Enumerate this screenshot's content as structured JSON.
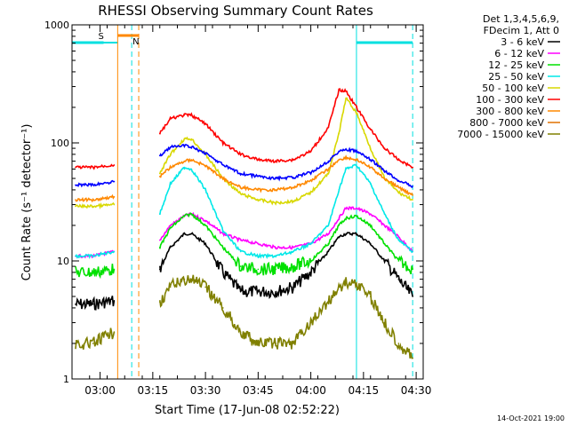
{
  "colors": {
    "background": "#ffffff",
    "axis": "#000000",
    "attenuator": "#ff8800",
    "saa_night": "#00e0e0"
  },
  "chart_data": {
    "type": "line",
    "title": "RHESSI Observing Summary Count Rates",
    "xlabel": "Start Time (17-Jun-08 02:52:22)",
    "ylabel": "Count Rate (s⁻¹ detector⁻¹)",
    "y_scale": "log",
    "ylim": [
      1,
      1000
    ],
    "xlim": [
      "02:52",
      "04:32"
    ],
    "x_ticks": [
      "03:00",
      "03:15",
      "03:30",
      "03:45",
      "04:00",
      "04:15",
      "04:30"
    ],
    "y_ticks": [
      "1",
      "10",
      "100",
      "1000"
    ],
    "legend_position": "top-right",
    "legend_header": [
      "Det 1,3,4,5,6,9,",
      "FDecim 1, Att 0"
    ],
    "footer": "14-Oct-2021 19:00",
    "x": [
      "02:53",
      "02:58",
      "03:04",
      "03:12",
      "03:17",
      "03:20",
      "03:24",
      "03:26",
      "03:30",
      "03:35",
      "03:40",
      "03:45",
      "03:50",
      "03:55",
      "04:00",
      "04:05",
      "04:08",
      "04:10",
      "04:13",
      "04:17",
      "04:21",
      "04:25",
      "04:29"
    ],
    "series": [
      {
        "name": "3 - 6 keV",
        "color": "#000000",
        "values": [
          4.3,
          4.3,
          4.6,
          null,
          8.5,
          13,
          17,
          17,
          14,
          8,
          5.5,
          5.5,
          5.5,
          6,
          8,
          12,
          16,
          17,
          17,
          14,
          10,
          7,
          5
        ]
      },
      {
        "name": "6 - 12 keV",
        "color": "#ff00ff",
        "values": [
          11,
          11,
          12,
          null,
          15,
          20,
          24,
          25,
          22,
          17,
          15,
          14,
          13,
          13,
          14,
          17,
          23,
          28,
          28,
          25,
          20,
          16,
          12
        ]
      },
      {
        "name": "12 - 25 keV",
        "color": "#00e000",
        "values": [
          8,
          8,
          8.5,
          null,
          13,
          19,
          24,
          25,
          20,
          13,
          9,
          8.5,
          8.5,
          9,
          10,
          14,
          20,
          23,
          24,
          20,
          14,
          10,
          8.5
        ]
      },
      {
        "name": "25 - 50 keV",
        "color": "#00e8e8",
        "values": [
          11,
          11,
          12,
          null,
          25,
          45,
          62,
          60,
          40,
          18,
          12,
          11,
          11,
          12,
          14,
          20,
          40,
          60,
          65,
          45,
          25,
          15,
          12
        ]
      },
      {
        "name": "50 - 100 keV",
        "color": "#d8d800",
        "values": [
          29,
          29,
          30,
          null,
          55,
          80,
          108,
          108,
          80,
          50,
          37,
          33,
          31,
          32,
          38,
          55,
          120,
          240,
          180,
          90,
          50,
          38,
          33
        ]
      },
      {
        "name": "100 - 300 keV",
        "color": "#ff0000",
        "values": [
          62,
          62,
          65,
          null,
          120,
          160,
          172,
          172,
          145,
          100,
          80,
          72,
          70,
          72,
          85,
          135,
          280,
          275,
          200,
          130,
          90,
          72,
          62
        ]
      },
      {
        "name": "300 - 800 keV",
        "color": "#ff8800",
        "values": [
          33,
          33,
          35,
          null,
          52,
          62,
          70,
          72,
          64,
          50,
          42,
          40,
          40,
          42,
          48,
          60,
          72,
          75,
          72,
          62,
          50,
          42,
          36
        ]
      },
      {
        "name": "800 - 7000 keV",
        "color": "#e07000",
        "values": [
          null,
          null,
          null,
          null,
          null,
          null,
          null,
          null,
          null,
          null,
          null,
          null,
          null,
          null,
          null,
          null,
          null,
          null,
          null,
          null,
          null,
          null,
          null
        ]
      },
      {
        "name": "7000 - 15000 keV",
        "color": "#808000",
        "values": [
          2,
          2,
          2.5,
          null,
          4.5,
          6,
          7,
          7,
          6,
          4,
          2.5,
          2,
          2,
          2,
          3,
          4.5,
          6,
          6.5,
          6.5,
          5,
          3,
          2,
          1.5
        ]
      },
      {
        "name": "",
        "color": "#0000ff",
        "values": [
          44,
          44,
          47,
          null,
          78,
          92,
          95,
          92,
          82,
          65,
          55,
          52,
          50,
          51,
          56,
          70,
          85,
          88,
          85,
          72,
          58,
          48,
          43
        ]
      }
    ],
    "markers": {
      "attenuator_label": "S",
      "attenuator_value": "N"
    }
  }
}
